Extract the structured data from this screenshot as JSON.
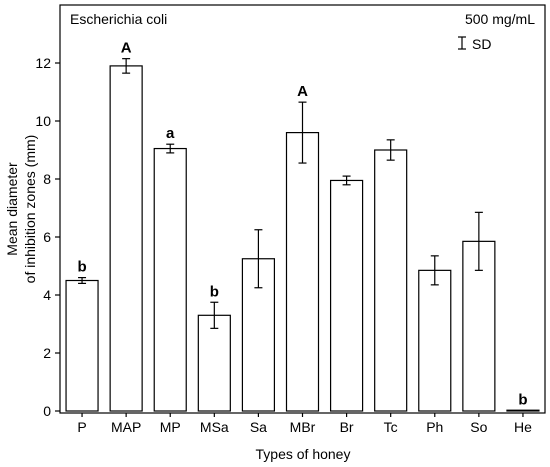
{
  "chart_data": {
    "type": "bar",
    "title": "Escherichia coli",
    "concentration_label": "500 mg/mL",
    "error_legend_label": "SD",
    "xlabel": "Types of honey",
    "ylabel_line1": "Mean diameter",
    "ylabel_line2": "of inhibition zones (mm)",
    "ylim": [
      0,
      13.5
    ],
    "yticks": [
      0,
      2,
      4,
      6,
      8,
      10,
      12
    ],
    "categories": [
      "P",
      "MAP",
      "MP",
      "MSa",
      "Sa",
      "MBr",
      "Br",
      "Tc",
      "Ph",
      "So",
      "He"
    ],
    "values": [
      4.5,
      11.9,
      9.05,
      3.3,
      5.25,
      9.6,
      7.95,
      9.0,
      4.85,
      5.85,
      0.02
    ],
    "errors": [
      0.1,
      0.25,
      0.15,
      0.45,
      1.0,
      1.05,
      0.15,
      0.35,
      0.5,
      1.0,
      0.0
    ],
    "annotations": [
      "b",
      "A",
      "a",
      "b",
      "",
      "A",
      "",
      "",
      "",
      "",
      "b"
    ],
    "annotation_bold_caps": [
      false,
      true,
      false,
      false,
      false,
      true,
      false,
      false,
      false,
      false,
      false
    ],
    "grid": false,
    "legend": "top-right"
  }
}
